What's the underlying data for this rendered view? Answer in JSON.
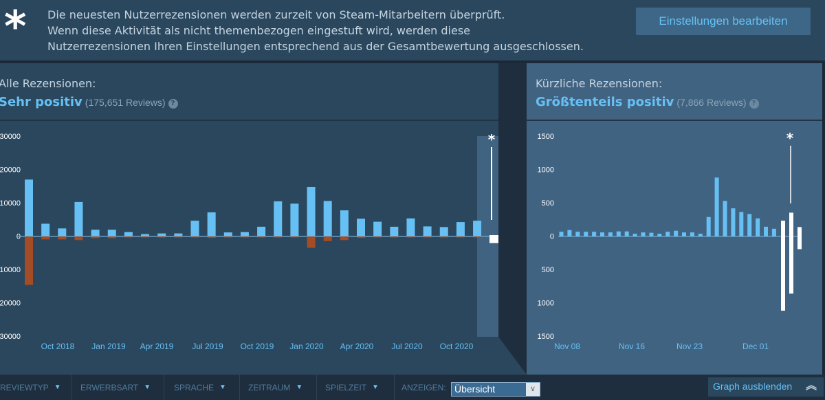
{
  "banner": {
    "icon": "asterisk-icon",
    "lines": [
      "Die neuesten Nutzerrezensionen werden zurzeit von Steam-Mitarbeitern überprüft.",
      "Wenn diese Aktivität als nicht themenbezogen eingestuft wird, werden diese",
      "Nutzerrezensionen Ihren Einstellungen entsprechend aus der Gesamtbewertung ausgeschlossen."
    ],
    "button": "Einstellungen bearbeiten"
  },
  "all_reviews": {
    "title": "Alle Rezensionen:",
    "rating": "Sehr positiv",
    "count": "(175,651 Reviews)",
    "help": "?"
  },
  "recent_reviews": {
    "title": "Kürzliche Rezensionen:",
    "rating": "Größtenteils positiv",
    "count": "(7,866 Reviews)",
    "help": "?"
  },
  "filters": {
    "items": [
      "REVIEWTYP",
      "ERWERBSART",
      "SPRACHE",
      "ZEITRAUM",
      "SPIELZEIT"
    ],
    "show_label": "ANZEIGEN:",
    "show_value": "Übersicht",
    "hide_graph": "Graph ausblenden"
  },
  "colors": {
    "positive": "#66c0f4",
    "negative": "#a34c25",
    "flagged": "#ffffff",
    "highlight": "#416382"
  },
  "chart_data": [
    {
      "type": "bar",
      "yticks": [
        "30000",
        "20000",
        "10000",
        "0",
        "10000",
        "20000",
        "30000"
      ],
      "ylim": [
        -30000,
        30000
      ],
      "xtick_labels": [
        "Oct 2018",
        "Jan 2019",
        "Apr 2019",
        "Jul 2019",
        "Oct 2019",
        "Jan 2020",
        "Apr 2020",
        "Jul 2020",
        "Oct 2020"
      ],
      "categories": [
        "Aug 2018",
        "Sep 2018",
        "Oct 2018",
        "Nov 2018",
        "Dec 2018",
        "Jan 2019",
        "Feb 2019",
        "Mar 2019",
        "Apr 2019",
        "May 2019",
        "Jun 2019",
        "Jul 2019",
        "Aug 2019",
        "Sep 2019",
        "Oct 2019",
        "Nov 2019",
        "Dec 2019",
        "Jan 2020",
        "Feb 2020",
        "Mar 2020",
        "Apr 2020",
        "May 2020",
        "Jun 2020",
        "Jul 2020",
        "Aug 2020",
        "Sep 2020",
        "Oct 2020",
        "Nov 2020"
      ],
      "series": [
        {
          "values": [
            17000,
            3800,
            2400,
            10300,
            2000,
            2000,
            1300,
            700,
            900,
            900,
            4700,
            7200,
            1200,
            1300,
            2900,
            10500,
            9800,
            14800,
            10600,
            7800,
            5300,
            4400,
            2900,
            5400,
            3000,
            2800,
            4300,
            4700
          ]
        },
        {
          "values": [
            -14500,
            -900,
            -900,
            -1100,
            -500,
            -500,
            -300,
            -100,
            -100,
            -100,
            -100,
            -400,
            -300,
            -300,
            -200,
            -100,
            -300,
            -3400,
            -1400,
            -1100,
            -400,
            -300,
            -200,
            -300,
            -100,
            -100,
            -200,
            -100
          ]
        }
      ],
      "flagged": {
        "category": "Dec 2020",
        "positive": 0,
        "negative": -2000,
        "marker": "*"
      }
    },
    {
      "type": "bar",
      "yticks": [
        "1500",
        "1000",
        "500",
        "0",
        "500",
        "1000",
        "1500"
      ],
      "ylim": [
        -1500,
        1500
      ],
      "xtick_labels": [
        "Nov 08",
        "Nov 16",
        "Nov 23",
        "Dec 01"
      ],
      "series": [
        {
          "values": [
            70,
            95,
            70,
            70,
            70,
            60,
            60,
            75,
            75,
            40,
            60,
            55,
            40,
            70,
            85,
            60,
            60,
            40,
            290,
            880,
            530,
            420,
            365,
            335,
            270,
            145,
            115
          ]
        }
      ],
      "flagged": {
        "positive": [
          235,
          355,
          140
        ],
        "negative": [
          -1110,
          -855,
          -190
        ],
        "marker": "*"
      }
    }
  ]
}
